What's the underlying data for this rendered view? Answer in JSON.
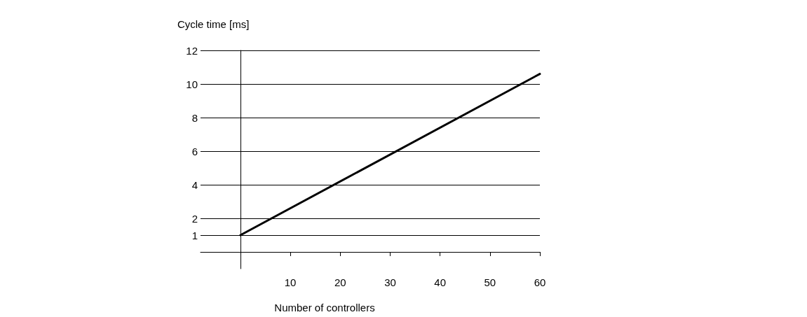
{
  "chart_data": {
    "type": "line",
    "xlabel": "Number of controllers",
    "ylabel": "Cycle time [ms]",
    "x": [
      0,
      60
    ],
    "series": [
      {
        "color": "#000000",
        "values": [
          1,
          10.6
        ]
      }
    ],
    "xlim": [
      -8,
      60
    ],
    "xticks": [
      10,
      20,
      30,
      40,
      50,
      60
    ],
    "ylim": [
      -1,
      12
    ],
    "yticks": [
      1,
      2,
      4,
      6,
      8,
      10,
      12
    ],
    "grid": "y",
    "marker": "none",
    "line_style": "solid"
  }
}
